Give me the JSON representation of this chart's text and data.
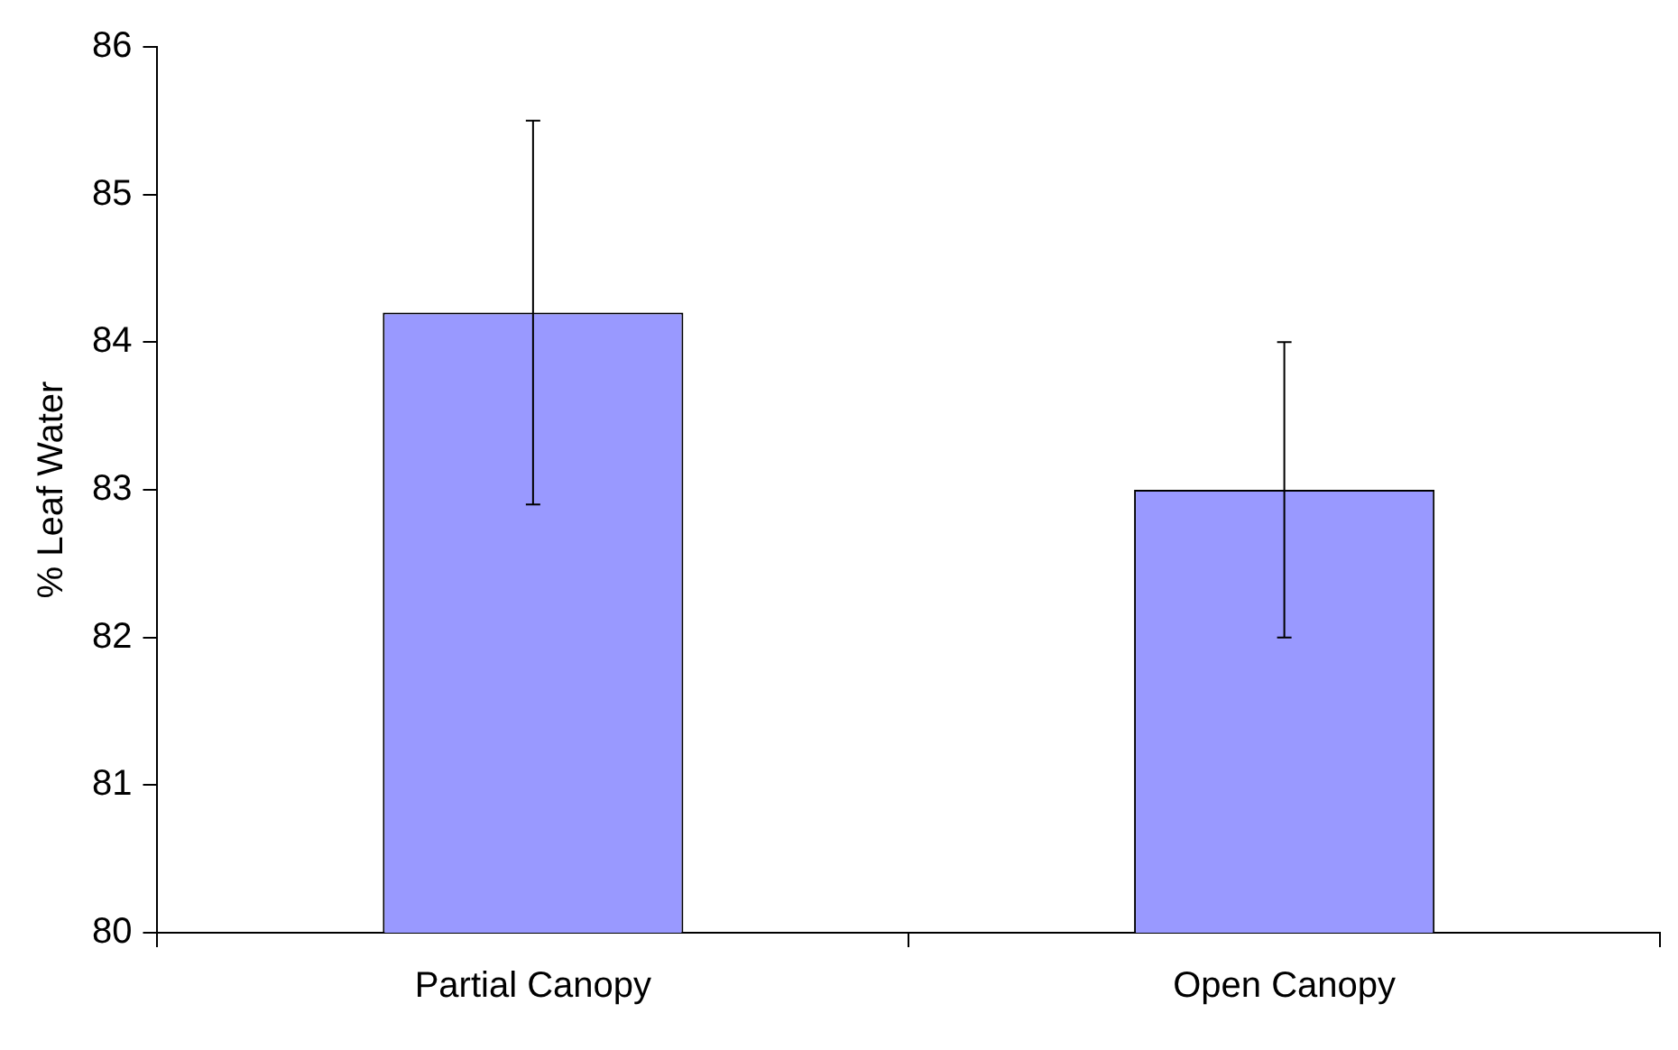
{
  "chart_data": {
    "type": "bar",
    "ylabel": "% Leaf Water",
    "categories": [
      "Partial Canopy",
      "Open Canopy"
    ],
    "values": [
      84.2,
      83.0
    ],
    "errors": [
      1.3,
      1.0
    ],
    "color": "#9999ff",
    "ylim": [
      80,
      86
    ],
    "yticks": [
      80,
      81,
      82,
      83,
      84,
      85,
      86
    ],
    "grid": false,
    "legend": false
  }
}
